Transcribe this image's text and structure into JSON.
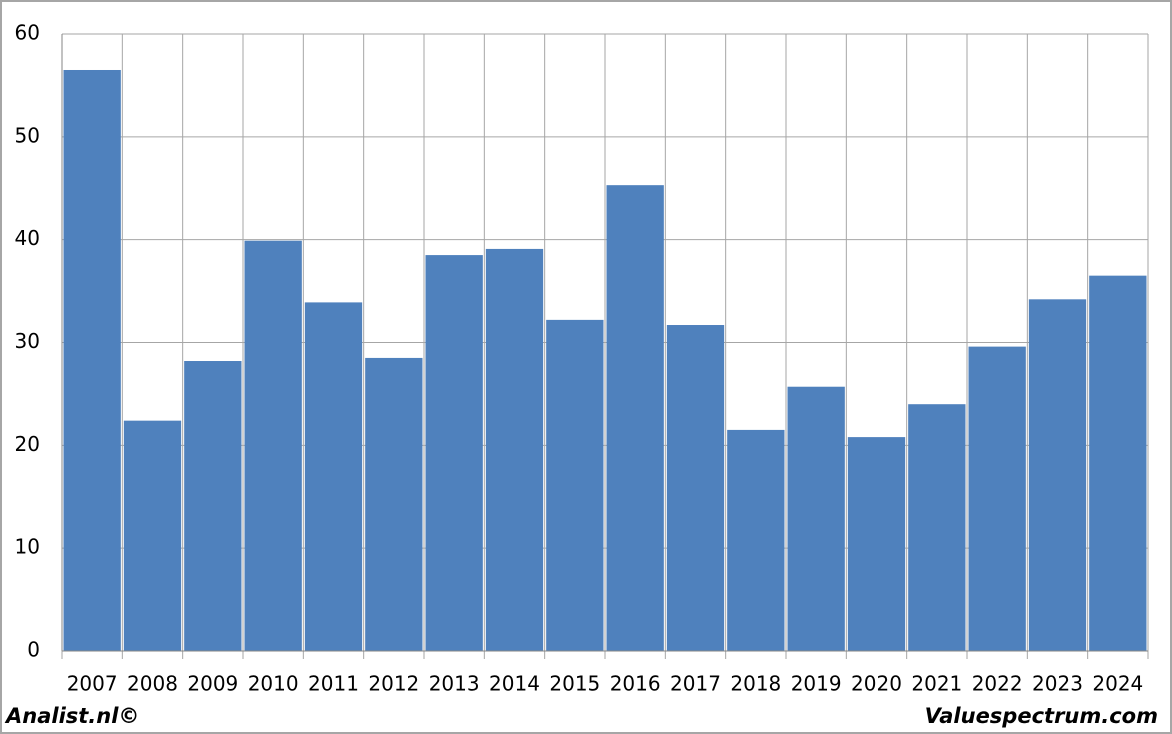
{
  "chart_data": {
    "type": "bar",
    "categories": [
      "2007",
      "2008",
      "2009",
      "2010",
      "2011",
      "2012",
      "2013",
      "2014",
      "2015",
      "2016",
      "2017",
      "2018",
      "2019",
      "2020",
      "2021",
      "2022",
      "2023",
      "2024"
    ],
    "values": [
      56.5,
      22.4,
      28.2,
      39.9,
      33.9,
      28.5,
      38.5,
      39.1,
      32.2,
      45.3,
      31.7,
      21.5,
      25.7,
      20.8,
      24.0,
      29.6,
      34.2,
      36.5
    ],
    "color": "#4f81bd",
    "ylim": [
      0,
      60
    ],
    "yticks": [
      0,
      10,
      20,
      30,
      40,
      50,
      60
    ],
    "grid": true,
    "source_left": "Analist.nl©",
    "source_right": "Valuespectrum.com"
  }
}
